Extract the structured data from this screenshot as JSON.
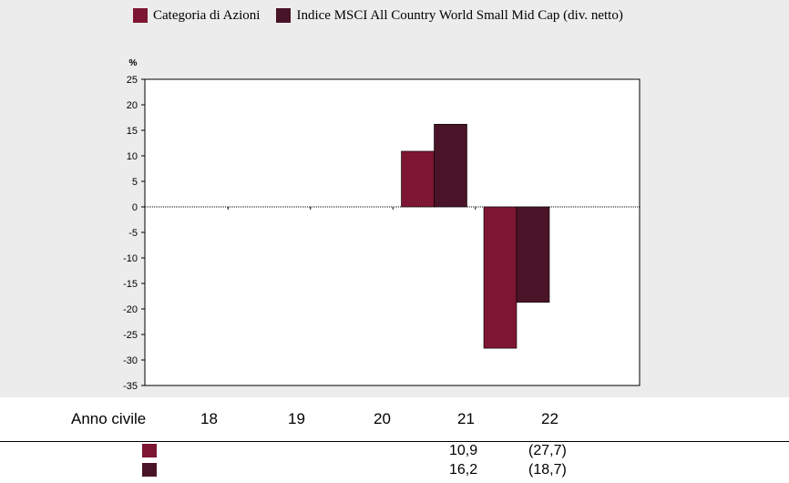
{
  "colors": {
    "series1": "#7d1632",
    "series2": "#4a1428",
    "background": "#ececec"
  },
  "legend": {
    "series1_label": "Categoria di Azioni",
    "series2_label": "Indice MSCI All Country World Small Mid Cap (div. netto)"
  },
  "chart_data": {
    "type": "bar",
    "ylabel": "%",
    "ylim": [
      -35,
      25
    ],
    "yticks": [
      25,
      20,
      15,
      10,
      5,
      0,
      -5,
      -10,
      -15,
      -20,
      -25,
      -30,
      -35
    ],
    "categories": [
      "18",
      "19",
      "20",
      "21",
      "22"
    ],
    "x_axis_label": "Anno civile",
    "zero_line": "dotted",
    "series": [
      {
        "color": "#7d1632",
        "values": [
          null,
          null,
          null,
          10.9,
          -27.7
        ]
      },
      {
        "color": "#4a1428",
        "values": [
          null,
          null,
          null,
          16.2,
          -18.7
        ]
      }
    ]
  },
  "table": {
    "rows": [
      {
        "color": "#7d1632",
        "values": [
          "",
          "",
          "",
          "10,9",
          "(27,7)"
        ]
      },
      {
        "color": "#4a1428",
        "values": [
          "",
          "",
          "",
          "16,2",
          "(18,7)"
        ]
      }
    ]
  }
}
